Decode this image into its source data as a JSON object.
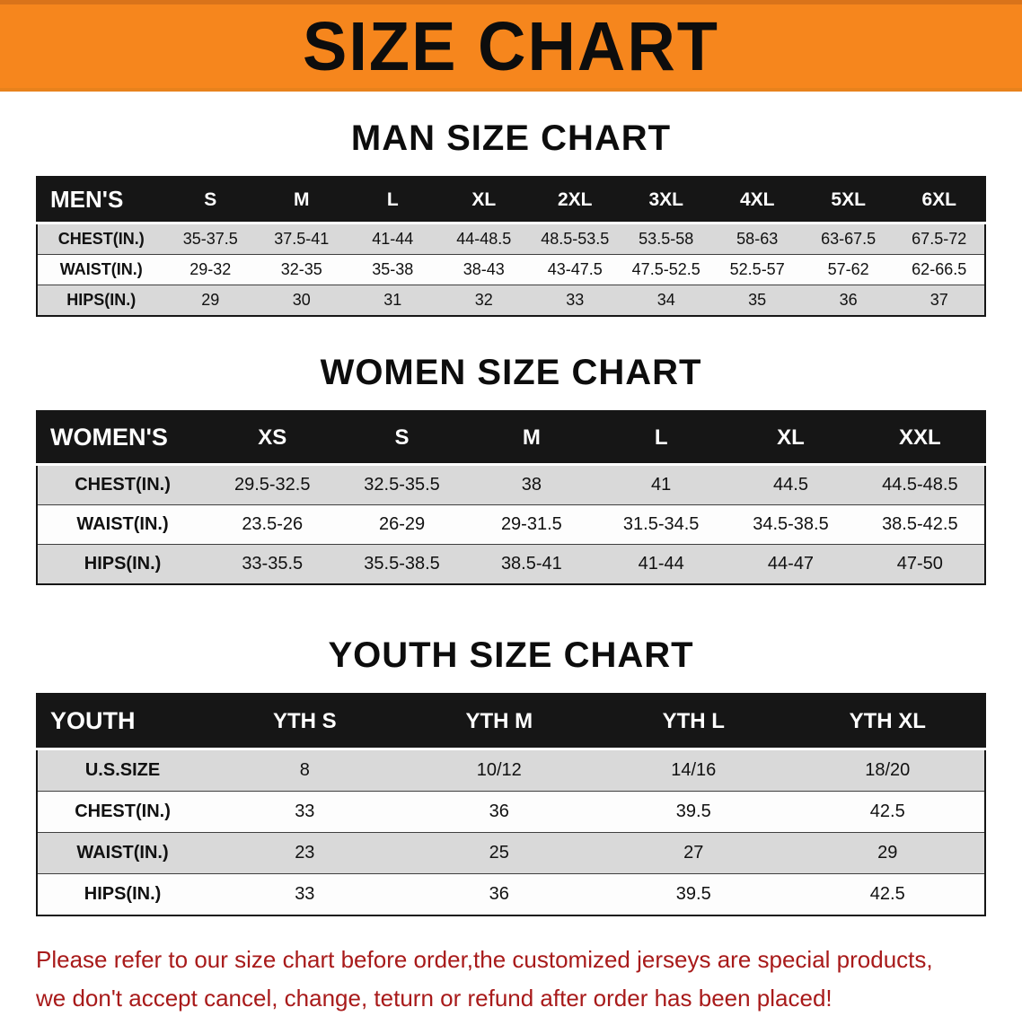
{
  "banner": {
    "title": "SIZE CHART",
    "bg_color": "#F6861D"
  },
  "sections": [
    {
      "id": "men",
      "heading": "MAN SIZE CHART",
      "table": {
        "header": [
          "MEN'S",
          "S",
          "M",
          "L",
          "XL",
          "2XL",
          "3XL",
          "4XL",
          "5XL",
          "6XL"
        ],
        "rows": [
          [
            "CHEST(IN.)",
            "35-37.5",
            "37.5-41",
            "41-44",
            "44-48.5",
            "48.5-53.5",
            "53.5-58",
            "58-63",
            "63-67.5",
            "67.5-72"
          ],
          [
            "WAIST(IN.)",
            "29-32",
            "32-35",
            "35-38",
            "38-43",
            "43-47.5",
            "47.5-52.5",
            "52.5-57",
            "57-62",
            "62-66.5"
          ],
          [
            "HIPS(IN.)",
            "29",
            "30",
            "31",
            "32",
            "33",
            "34",
            "35",
            "36",
            "37"
          ]
        ]
      }
    },
    {
      "id": "women",
      "heading": "WOMEN SIZE CHART",
      "table": {
        "header": [
          "WOMEN'S",
          "XS",
          "S",
          "M",
          "L",
          "XL",
          "XXL"
        ],
        "rows": [
          [
            "CHEST(IN.)",
            "29.5-32.5",
            "32.5-35.5",
            "38",
            "41",
            "44.5",
            "44.5-48.5"
          ],
          [
            "WAIST(IN.)",
            "23.5-26",
            "26-29",
            "29-31.5",
            "31.5-34.5",
            "34.5-38.5",
            "38.5-42.5"
          ],
          [
            "HIPS(IN.)",
            "33-35.5",
            "35.5-38.5",
            "38.5-41",
            "41-44",
            "44-47",
            "47-50"
          ]
        ]
      }
    },
    {
      "id": "youth",
      "heading": "YOUTH SIZE CHART",
      "table": {
        "header": [
          "YOUTH",
          "YTH S",
          "YTH M",
          "YTH L",
          "YTH XL"
        ],
        "rows": [
          [
            "U.S.SIZE",
            "8",
            "10/12",
            "14/16",
            "18/20"
          ],
          [
            "CHEST(IN.)",
            "33",
            "36",
            "39.5",
            "42.5"
          ],
          [
            "WAIST(IN.)",
            "23",
            "25",
            "27",
            "29"
          ],
          [
            "HIPS(IN.)",
            "33",
            "36",
            "39.5",
            "42.5"
          ]
        ]
      }
    }
  ],
  "disclaimer": {
    "line1": "Please refer to our size chart before order,the customized jerseys are special products,",
    "line2": "we don't accept cancel, change, teturn or refund after order has been placed!",
    "text_color": "#A81A1A"
  }
}
